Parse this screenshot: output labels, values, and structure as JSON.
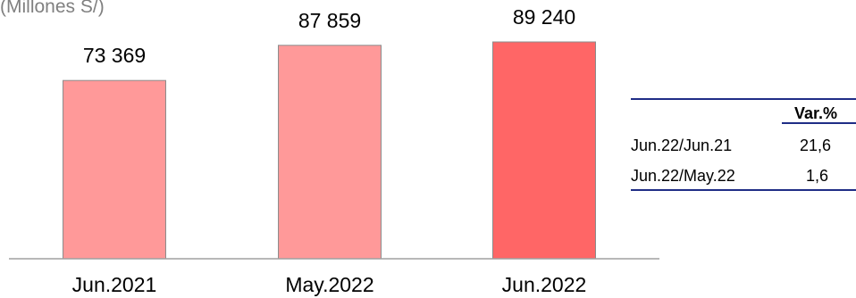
{
  "chart_data": {
    "type": "bar",
    "units_note": "(Millones S/)",
    "categories": [
      "Jun.2021",
      "May.2022",
      "Jun.2022"
    ],
    "values": [
      73369,
      87859,
      89240
    ],
    "value_labels": [
      "73 369",
      "87 859",
      "89 240"
    ],
    "bar_colors": [
      "#ff9999",
      "#ff9999",
      "#ff6666"
    ],
    "bar_stroke": "#8c8c8c",
    "ylim": [
      0,
      89240
    ],
    "grid": false
  },
  "variation_table": {
    "header": "Var.%",
    "rows": [
      {
        "label": "Jun.22/Jun.21",
        "value": "21,6"
      },
      {
        "label": "Jun.22/May.22",
        "value": "1,6"
      }
    ],
    "rule_color": "#1f2d86"
  }
}
